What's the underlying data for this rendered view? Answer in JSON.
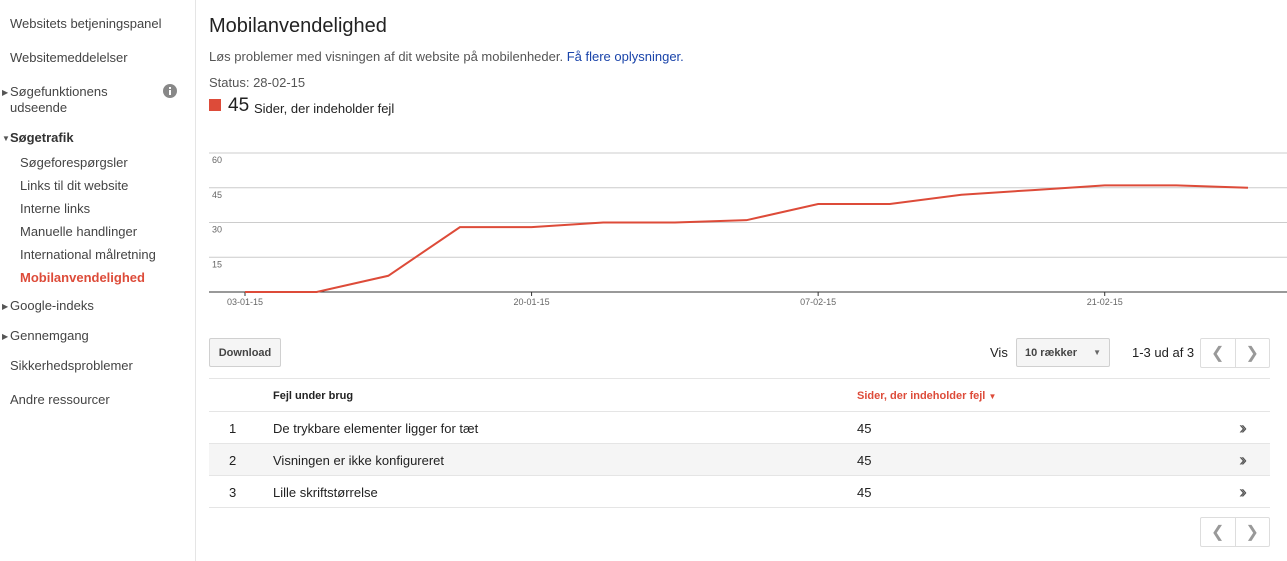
{
  "sidebar": {
    "items": [
      "Websitets betjeningspanel",
      "Websitemeddelelser",
      "Søgefunktionens udseende",
      "Søgetrafik",
      "Søgeforespørgsler",
      "Links til dit website",
      "Interne links",
      "Manuelle handlinger",
      "International målretning",
      "Mobilanvendelighed",
      "Google-indeks",
      "Gennemgang",
      "Sikkerhedsproblemer",
      "Andre ressourcer"
    ]
  },
  "header": {
    "title": "Mobilanvendelighed",
    "description": "Løs problemer med visningen af dit website på mobilenheder.",
    "link": "Få flere oplysninger.",
    "status": "Status: 28-02-15",
    "count": 45,
    "count_label": "Sider, der indeholder fejl"
  },
  "chart_data": {
    "type": "line",
    "color": "#dd4b39",
    "categories": [
      "03-01-15",
      null,
      null,
      null,
      "20-01-15",
      null,
      null,
      null,
      "07-02-15",
      null,
      null,
      null,
      "21-02-15",
      null,
      null
    ],
    "values": [
      0,
      0,
      7,
      28,
      28,
      30,
      30,
      31,
      38,
      38,
      42,
      44,
      46,
      46,
      45
    ],
    "ylim": [
      0,
      60
    ],
    "yticks": [
      15,
      30,
      45,
      60
    ],
    "grid": true
  },
  "controls": {
    "download": "Download",
    "show": "Vis",
    "rows": "10 rækker",
    "range": "1-3 ud af 3"
  },
  "table": {
    "header": [
      "Fejl under brug",
      "Sider, der indeholder fejl"
    ],
    "rows": [
      [
        1,
        "De trykbare elementer ligger for tæt",
        45
      ],
      [
        2,
        "Visningen er ikke konfigureret",
        45
      ],
      [
        3,
        "Lille skriftstørrelse",
        45
      ]
    ]
  }
}
